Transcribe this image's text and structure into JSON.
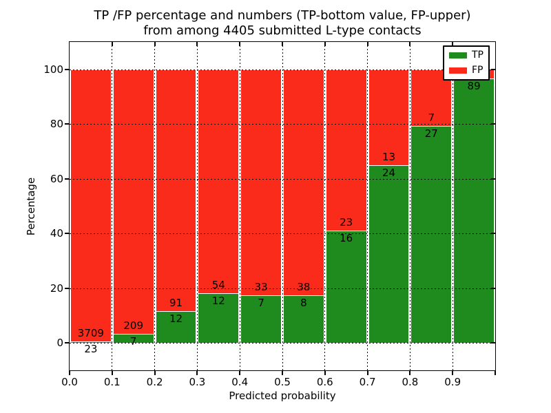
{
  "chart_data": {
    "type": "bar",
    "stacked": true,
    "normalized_to_percent": true,
    "title_line1": "TP /FP percentage and numbers (TP-bottom value, FP-upper)",
    "title_line2": "from among 4405 submitted L-type contacts",
    "xlabel": "Predicted probability",
    "ylabel": "Percentage",
    "total_submitted": 4405,
    "x_tick_labels": [
      "0.0",
      "0.1",
      "0.2",
      "0.3",
      "0.4",
      "0.5",
      "0.6",
      "0.7",
      "0.8",
      "0.9"
    ],
    "y_tick_labels": [
      "0",
      "20",
      "40",
      "60",
      "80",
      "100"
    ],
    "y_tick_values": [
      0,
      20,
      40,
      60,
      80,
      100
    ],
    "xlim": [
      0.0,
      1.0
    ],
    "ylim": [
      -10,
      110
    ],
    "grid": "dotted black, drawn over bars",
    "legend": {
      "position": "upper right",
      "tp_label": "TP",
      "fp_label": "FP"
    },
    "colors": {
      "tp": "#1f8b1f",
      "fp": "#fb2b1b",
      "bar_edge": "#ffffff",
      "grid": "#000000",
      "text": "#000000"
    },
    "bars": [
      {
        "x_range": "0.0-0.1",
        "tp": 23,
        "fp": 3709,
        "tp_pct": 0.62,
        "tp_label": "23",
        "fp_label": "3709"
      },
      {
        "x_range": "0.1-0.2",
        "tp": 7,
        "fp": 209,
        "tp_pct": 3.24,
        "tp_label": "7",
        "fp_label": "209"
      },
      {
        "x_range": "0.2-0.3",
        "tp": 12,
        "fp": 91,
        "tp_pct": 11.65,
        "tp_label": "12",
        "fp_label": "91"
      },
      {
        "x_range": "0.3-0.4",
        "tp": 12,
        "fp": 54,
        "tp_pct": 18.18,
        "tp_label": "12",
        "fp_label": "54"
      },
      {
        "x_range": "0.4-0.5",
        "tp": 7,
        "fp": 33,
        "tp_pct": 17.5,
        "tp_label": "7",
        "fp_label": "33"
      },
      {
        "x_range": "0.5-0.6",
        "tp": 8,
        "fp": 38,
        "tp_pct": 17.39,
        "tp_label": "8",
        "fp_label": "38"
      },
      {
        "x_range": "0.6-0.7",
        "tp": 16,
        "fp": 23,
        "tp_pct": 41.03,
        "tp_label": "16",
        "fp_label": "23"
      },
      {
        "x_range": "0.7-0.8",
        "tp": 24,
        "fp": 13,
        "tp_pct": 64.86,
        "tp_label": "24",
        "fp_label": "13"
      },
      {
        "x_range": "0.8-0.9",
        "tp": 27,
        "fp": 7,
        "tp_pct": 79.41,
        "tp_label": "27",
        "fp_label": "7"
      },
      {
        "x_range": "0.9-1.0",
        "tp": 89,
        "tp_pct": 96.74,
        "tp_label": "89",
        "fp_label": ""
      }
    ]
  }
}
